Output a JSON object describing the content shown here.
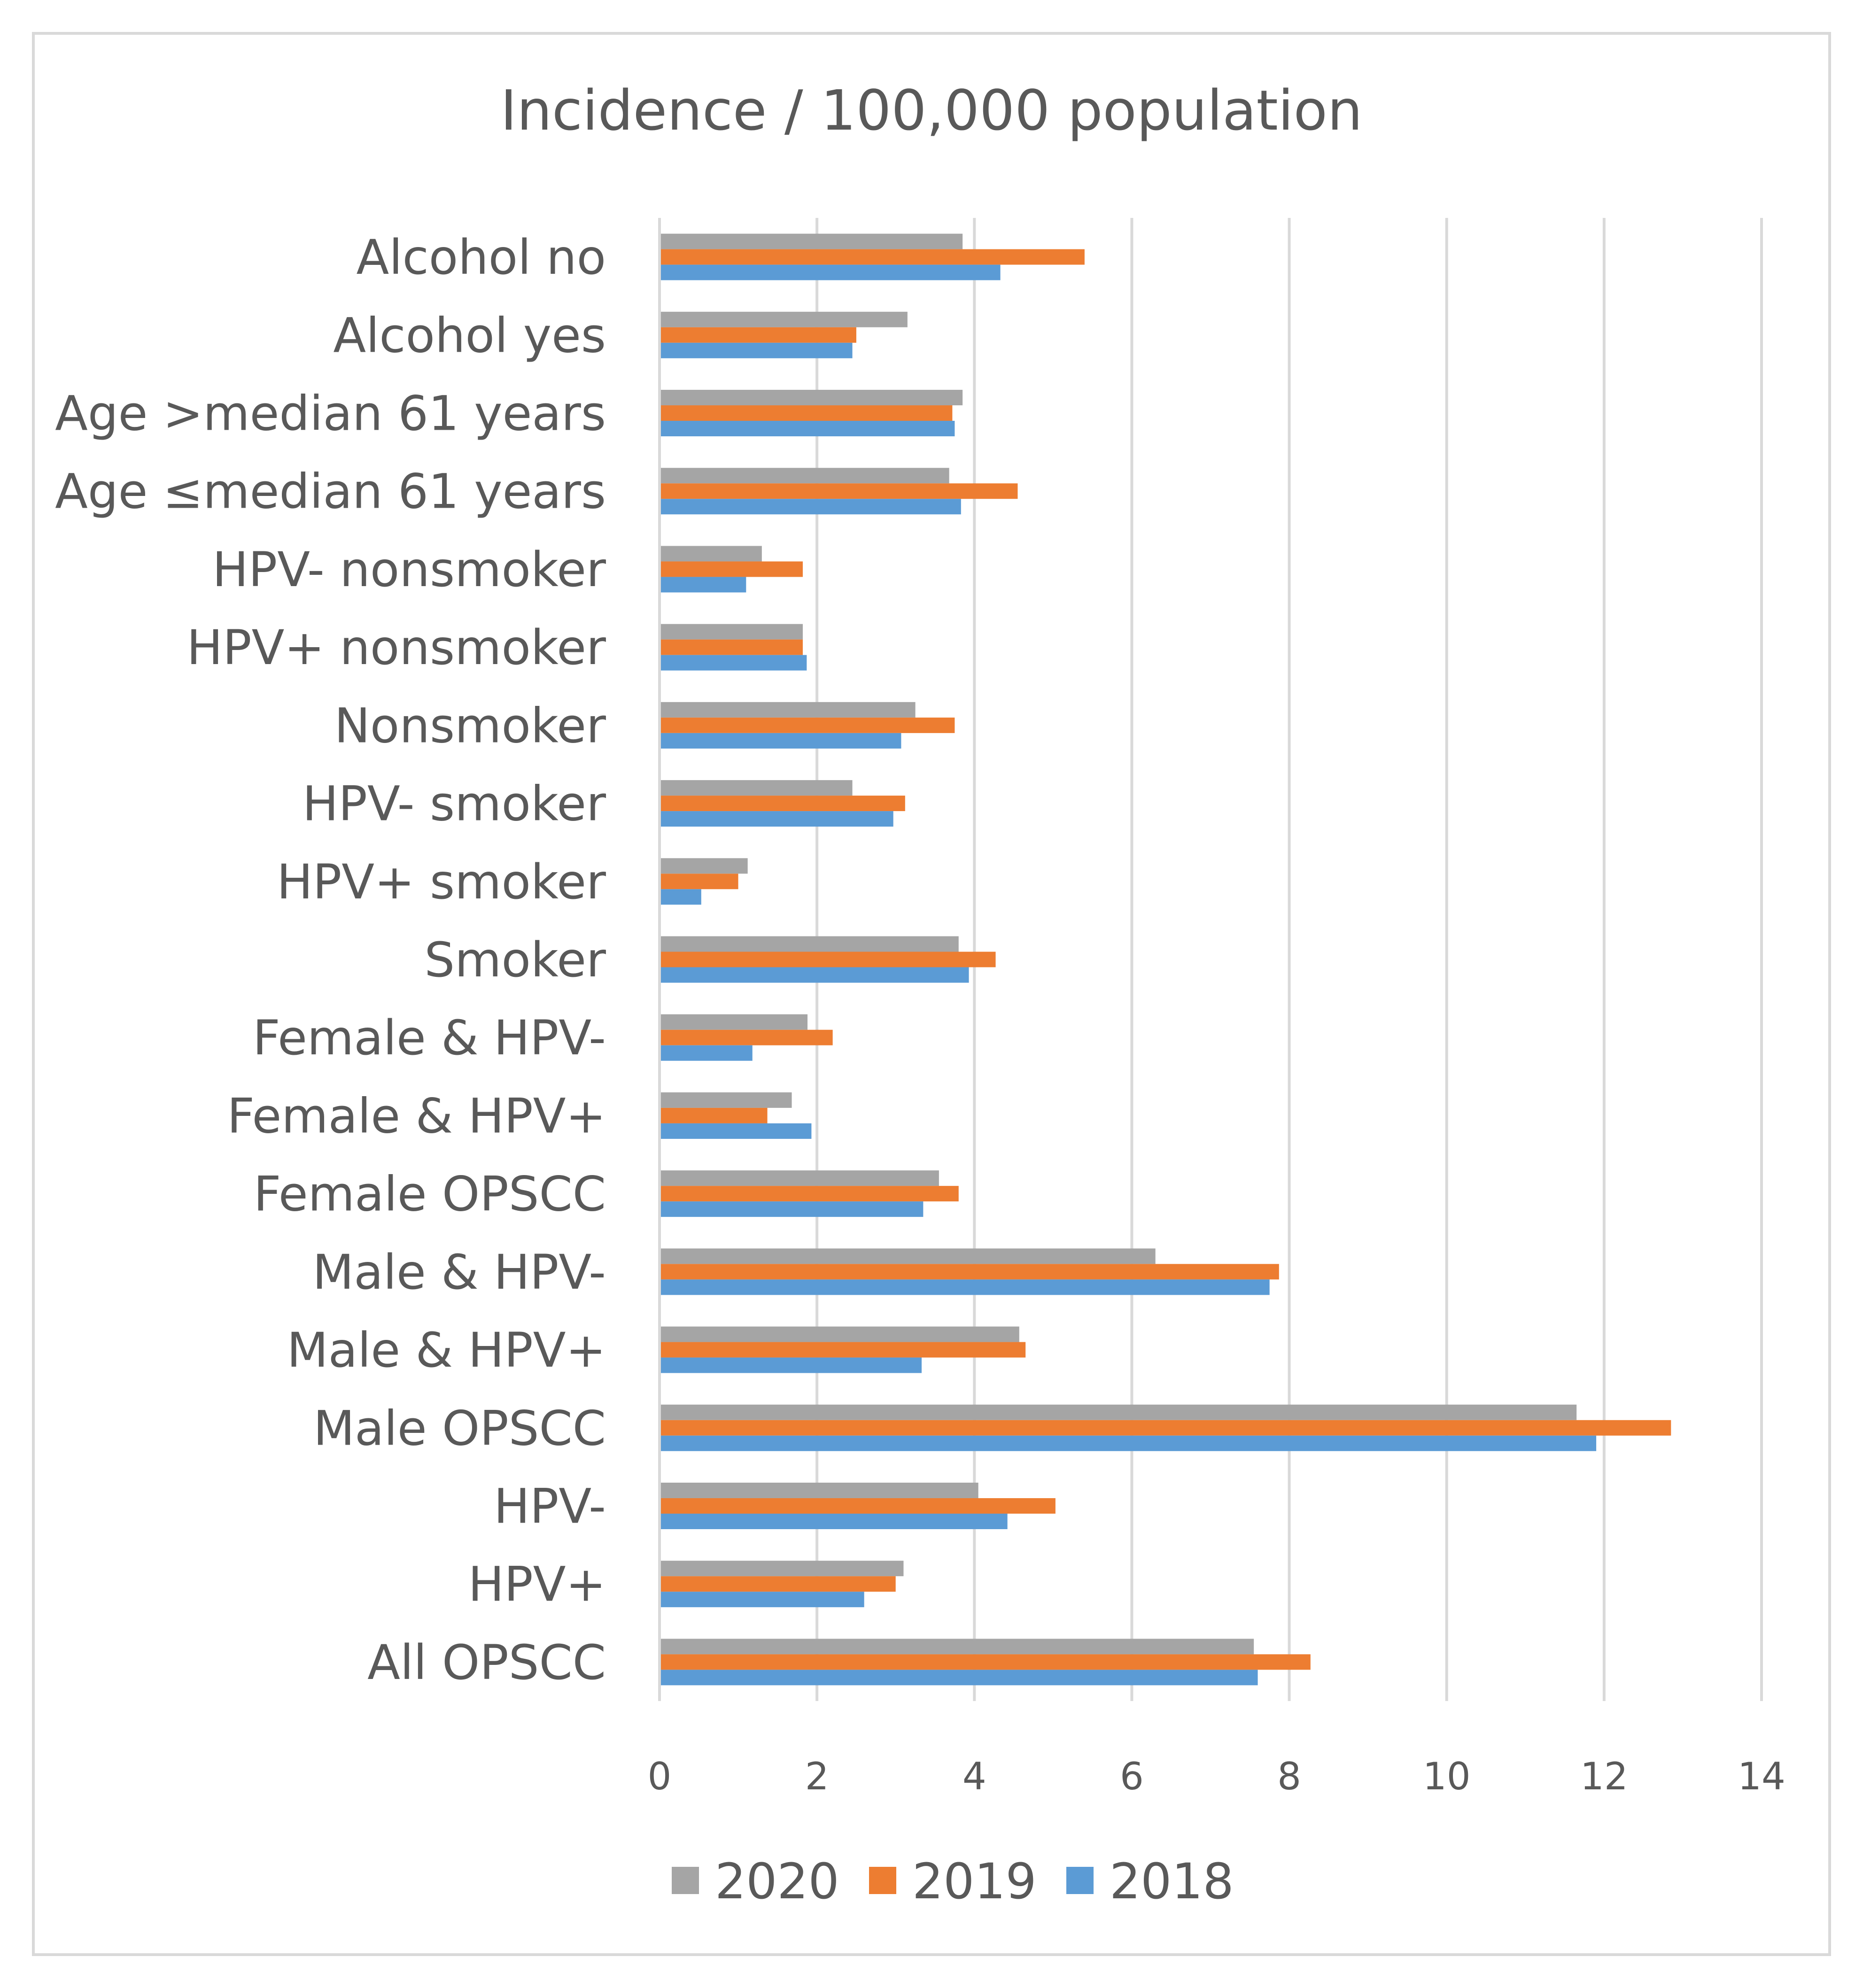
{
  "chart_data": {
    "type": "bar",
    "orientation": "horizontal",
    "title": "Incidence / 100,000 population",
    "xlabel": "",
    "ylabel": "",
    "xlim": [
      0,
      14
    ],
    "ticks": [
      "0",
      "2",
      "4",
      "6",
      "8",
      "10",
      "12",
      "14"
    ],
    "grid": true,
    "legend_position": "bottom",
    "categories": [
      "Alcohol no",
      "Alcohol yes",
      "Age >median 61 years",
      "Age ≤median 61 years",
      "HPV- nonsmoker",
      "HPV+ nonsmoker",
      "Nonsmoker",
      "HPV- smoker",
      "HPV+ smoker",
      "Smoker",
      "Female & HPV-",
      "Female & HPV+",
      "Female OPSCC",
      "Male & HPV-",
      "Male & HPV+",
      "Male OPSCC",
      "HPV-",
      "HPV+",
      "All OPSCC"
    ],
    "series": [
      {
        "name": "2020",
        "color": "#a5a5a5",
        "values": [
          3.85,
          3.15,
          3.85,
          3.68,
          1.3,
          1.82,
          3.25,
          2.45,
          1.12,
          3.8,
          1.88,
          1.68,
          3.55,
          6.3,
          4.57,
          11.65,
          4.05,
          3.1,
          7.55
        ]
      },
      {
        "name": "2019",
        "color": "#ed7d31",
        "values": [
          5.4,
          2.5,
          3.72,
          4.55,
          1.82,
          1.82,
          3.75,
          3.12,
          1.0,
          4.27,
          2.2,
          1.37,
          3.8,
          7.87,
          4.65,
          12.85,
          5.03,
          3.0,
          8.27
        ]
      },
      {
        "name": "2018",
        "color": "#5b9bd5",
        "values": [
          4.33,
          2.45,
          3.75,
          3.83,
          1.1,
          1.87,
          3.07,
          2.97,
          0.53,
          3.93,
          1.18,
          1.93,
          3.35,
          7.75,
          3.33,
          11.9,
          4.42,
          2.6,
          7.6
        ]
      }
    ]
  }
}
